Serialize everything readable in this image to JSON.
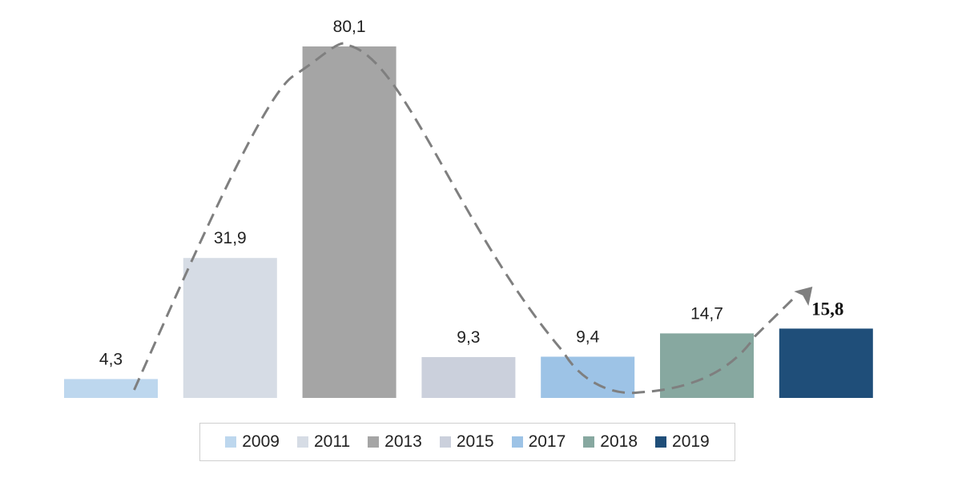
{
  "chart_data": {
    "type": "bar",
    "title": "",
    "xlabel": "",
    "ylabel": "",
    "ylim": [
      0,
      80.1
    ],
    "grid": false,
    "legend_position": "bottom",
    "categories": [
      "2009",
      "2011",
      "2013",
      "2015",
      "2017",
      "2018",
      "2019"
    ],
    "values": [
      4.3,
      31.9,
      80.1,
      9.3,
      9.4,
      14.7,
      15.8
    ],
    "value_labels": [
      "4,3",
      "31,9",
      "80,1",
      "9,3",
      "9,4",
      "14,7",
      "15,8"
    ],
    "colors": [
      "#bdd7ee",
      "#d6dce5",
      "#a5a5a5",
      "#cbd0dc",
      "#9dc3e6",
      "#87a8a0",
      "#1f4e79"
    ],
    "annotations": [
      {
        "type": "dashed-trend-arrow",
        "color": "#7f7f7f"
      }
    ]
  }
}
